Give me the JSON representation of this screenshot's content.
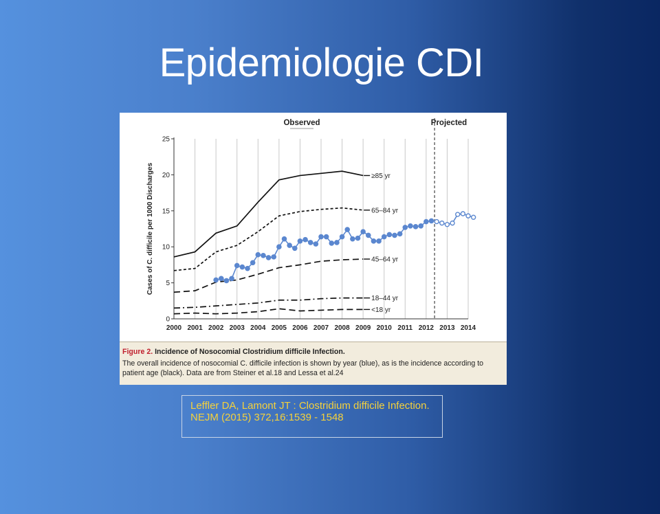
{
  "slide": {
    "title": "Epidemiologie CDI",
    "reference": "Leffler DA, Lamont JT : Clostridium difficile Infection. NEJM (2015) 372,16:1539 - 1548"
  },
  "figure": {
    "caption_label": "Figure 2.",
    "caption_title": "Incidence of Nosocomial Clostridium difficile Infection.",
    "caption_text": "The overall incidence of nosocomial C. difficile infection is shown by year (blue), as is the incidence according to patient age (black). Data are from Steiner et al.18 and Lessa et al.24"
  },
  "colors": {
    "overall": "#5b87cf",
    "age": "#111111",
    "grid": "#c8c8c8"
  },
  "chart_data": {
    "type": "line",
    "title": "Incidence of Nosocomial Clostridium difficile Infection",
    "xlabel": "",
    "ylabel": "Cases of C. difficile per 1000 Discharges",
    "xlim": [
      2000,
      2014
    ],
    "ylim": [
      0,
      25
    ],
    "yticks": [
      0,
      5,
      10,
      15,
      20,
      25
    ],
    "xticks": [
      2000,
      2001,
      2002,
      2003,
      2004,
      2005,
      2006,
      2007,
      2008,
      2009,
      2010,
      2011,
      2012,
      2013,
      2014
    ],
    "section_labels": {
      "observed": "Observed",
      "projected": "Projected"
    },
    "projection_start": 2012.4,
    "series": [
      {
        "name": "≥85 yr",
        "style": "solid",
        "x": [
          2000,
          2001,
          2002,
          2003,
          2004,
          2005,
          2006,
          2007,
          2008,
          2009
        ],
        "y": [
          8.6,
          9.3,
          11.9,
          12.9,
          16.2,
          19.3,
          19.9,
          20.2,
          20.5,
          19.9
        ]
      },
      {
        "name": "65–84 yr",
        "style": "dash-short",
        "x": [
          2000,
          2001,
          2002,
          2003,
          2004,
          2005,
          2006,
          2007,
          2008,
          2009
        ],
        "y": [
          6.7,
          7.0,
          9.3,
          10.2,
          12.1,
          14.3,
          14.9,
          15.2,
          15.4,
          15.1
        ]
      },
      {
        "name": "45–64 yr",
        "style": "dash-long",
        "x": [
          2000,
          2001,
          2002,
          2003,
          2004,
          2005,
          2006,
          2007,
          2008,
          2009
        ],
        "y": [
          3.7,
          3.9,
          5.1,
          5.4,
          6.2,
          7.1,
          7.5,
          8.0,
          8.2,
          8.3
        ]
      },
      {
        "name": "18–44 yr",
        "style": "dash-dot",
        "x": [
          2000,
          2001,
          2002,
          2003,
          2004,
          2005,
          2006,
          2007,
          2008,
          2009
        ],
        "y": [
          1.5,
          1.6,
          1.8,
          2.0,
          2.2,
          2.6,
          2.6,
          2.8,
          2.9,
          2.9
        ]
      },
      {
        "name": "<18 yr",
        "style": "dash-long",
        "x": [
          2000,
          2001,
          2002,
          2003,
          2004,
          2005,
          2006,
          2007,
          2008,
          2009
        ],
        "y": [
          0.7,
          0.8,
          0.7,
          0.8,
          1.0,
          1.4,
          1.1,
          1.2,
          1.3,
          1.3
        ]
      },
      {
        "name": "Overall (observed)",
        "style": "blue-markers",
        "x": [
          2002,
          2002.25,
          2002.5,
          2002.75,
          2003,
          2003.25,
          2003.5,
          2003.75,
          2004,
          2004.25,
          2004.5,
          2004.75,
          2005,
          2005.25,
          2005.5,
          2005.75,
          2006,
          2006.25,
          2006.5,
          2006.75,
          2007,
          2007.25,
          2007.5,
          2007.75,
          2008,
          2008.25,
          2008.5,
          2008.75,
          2009,
          2009.25,
          2009.5,
          2009.75,
          2010,
          2010.25,
          2010.5,
          2010.75,
          2011,
          2011.25,
          2011.5,
          2011.75,
          2012,
          2012.25
        ],
        "y": [
          5.4,
          5.6,
          5.3,
          5.6,
          7.4,
          7.2,
          7.0,
          7.8,
          8.9,
          8.8,
          8.5,
          8.6,
          10.0,
          11.1,
          10.2,
          9.8,
          10.8,
          11.0,
          10.6,
          10.4,
          11.4,
          11.4,
          10.5,
          10.6,
          11.4,
          12.4,
          11.1,
          11.2,
          12.1,
          11.6,
          10.8,
          10.8,
          11.4,
          11.7,
          11.6,
          11.8,
          12.7,
          12.9,
          12.8,
          12.9,
          13.5,
          13.6
        ]
      },
      {
        "name": "Overall (projected)",
        "style": "blue-open-markers",
        "x": [
          2012.5,
          2012.75,
          2013,
          2013.25,
          2013.5,
          2013.75,
          2014,
          2014.25
        ],
        "y": [
          13.5,
          13.3,
          13.1,
          13.3,
          14.5,
          14.6,
          14.3,
          14.1
        ]
      }
    ]
  }
}
